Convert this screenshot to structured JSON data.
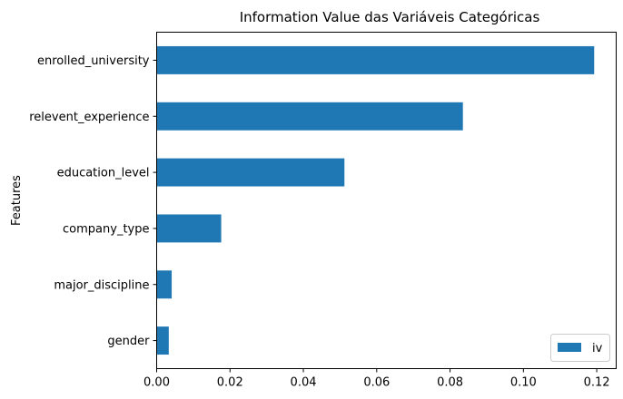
{
  "chart_data": {
    "type": "bar",
    "orientation": "horizontal",
    "title": "Information Value das Variáveis Categóricas",
    "xlabel": "",
    "ylabel": "Features",
    "categories": [
      "enrolled_university",
      "relevent_experience",
      "education_level",
      "company_type",
      "major_discipline",
      "gender"
    ],
    "series": [
      {
        "name": "iv",
        "values": [
          0.1193,
          0.0835,
          0.0512,
          0.0176,
          0.0041,
          0.0033
        ]
      }
    ],
    "xlim": [
      0,
      0.1253
    ],
    "xticks": [
      0.0,
      0.02,
      0.04,
      0.06,
      0.08,
      0.1,
      0.12
    ],
    "xtick_labels": [
      "0.00",
      "0.02",
      "0.04",
      "0.06",
      "0.08",
      "0.10",
      "0.12"
    ],
    "grid": false,
    "legend_position": "lower right",
    "bar_color": "#1f77b4"
  }
}
